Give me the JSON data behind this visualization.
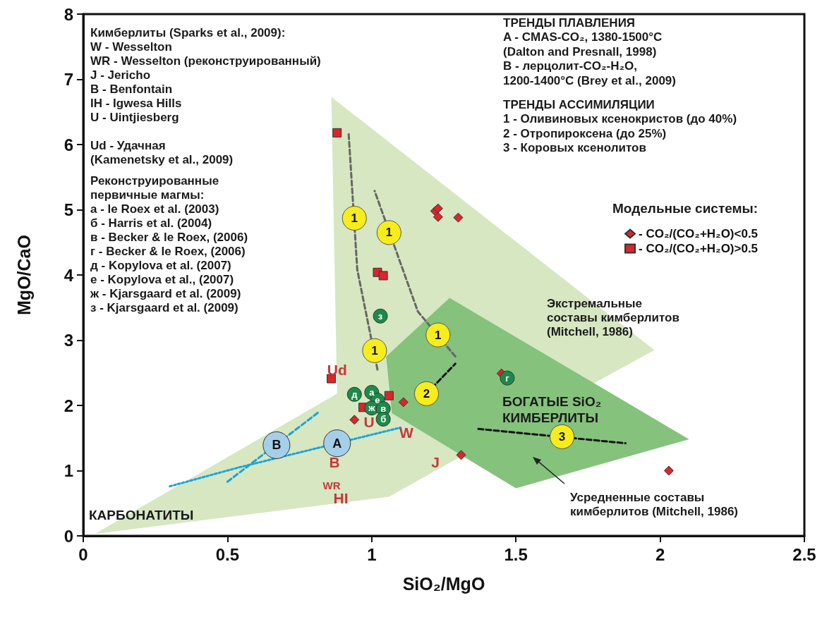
{
  "chart_data": {
    "type": "scatter",
    "xlabel": "SiO₂/MgO",
    "ylabel": "MgO/CaO",
    "xlim": [
      0,
      2.5
    ],
    "xticks": [
      0,
      0.5,
      1,
      1.5,
      2,
      2.5
    ],
    "ylim": [
      0,
      8
    ],
    "yticks": [
      0,
      1,
      2,
      3,
      4,
      5,
      6,
      7,
      8
    ],
    "grid": false,
    "legend": "right",
    "legend_title": "Модельные системы:",
    "series": [
      {
        "type": "area",
        "color": "#d6e7c2",
        "x": [
          0.04,
          0.88,
          0.86,
          1.98,
          1.31,
          1.06
        ],
        "values": [
          0.03,
          2.18,
          6.73,
          2.85,
          1.22,
          0.6
        ]
      },
      {
        "type": "area",
        "color": "#85c27c",
        "x": [
          1.05,
          1.27,
          2.1,
          1.5,
          1.07
        ],
        "values": [
          2.75,
          3.65,
          1.48,
          0.73,
          1.88
        ]
      },
      {
        "type": "line",
        "color": "#666666",
        "line_style": "dashed",
        "x": [
          1.02,
          0.95,
          0.92
        ],
        "values": [
          2.55,
          4.08,
          6.17
        ]
      },
      {
        "type": "line",
        "color": "#666666",
        "line_style": "dashed",
        "x": [
          1.29,
          1.16,
          1.01
        ],
        "values": [
          2.75,
          3.44,
          5.29
        ]
      },
      {
        "type": "line",
        "color": "#111111",
        "line_style": "dashed",
        "x": [
          1.19,
          1.29
        ],
        "values": [
          2.18,
          2.64
        ]
      },
      {
        "type": "line",
        "color": "#111111",
        "line_style": "dashed",
        "x": [
          1.37,
          1.88
        ],
        "values": [
          1.64,
          1.42
        ]
      },
      {
        "type": "line",
        "color": "#1ba3d9",
        "line_style": "dotted",
        "x": [
          0.3,
          0.54,
          1.1
        ],
        "values": [
          0.76,
          1.05,
          1.66
        ]
      },
      {
        "type": "line",
        "color": "#1ba3d9",
        "line_style": "dashed",
        "x": [
          0.5,
          0.82
        ],
        "values": [
          0.83,
          1.91
        ]
      },
      {
        "name": "- CO₂/(CO₂+H₂O)<0.5",
        "marker": "diamond",
        "color": "#d9262b",
        "x": [
          1.22,
          1.23,
          1.23,
          1.3,
          0.94,
          1.11,
          1.31,
          1.45,
          2.03
        ],
        "values": [
          4.98,
          5.02,
          4.89,
          4.88,
          1.78,
          2.05,
          1.24,
          2.49,
          1.0
        ]
      },
      {
        "name": "- CO₂/(CO₂+H₂O)>0.5",
        "marker": "square",
        "color": "#d9262b",
        "x": [
          0.88,
          1.02,
          1.04,
          0.86,
          0.97,
          1.06
        ],
        "values": [
          6.18,
          4.04,
          3.99,
          2.41,
          1.97,
          2.15
        ]
      },
      {
        "marker": "circle",
        "color": "#1e8a4a",
        "x": [
          0.94,
          1.0,
          1.02,
          1.0,
          1.04,
          1.04,
          1.03,
          1.47
        ],
        "values": [
          2.17,
          2.2,
          2.08,
          1.96,
          1.95,
          1.79,
          3.37,
          2.42
        ],
        "value_labels": [
          "д",
          "а",
          "е",
          "ж",
          "в",
          "б",
          "з",
          "г"
        ]
      },
      {
        "marker": "circle",
        "color": "#a5cfe8",
        "x": [
          0.67,
          0.88
        ],
        "values": [
          1.39,
          1.42
        ],
        "value_labels": [
          "B",
          "A"
        ]
      }
    ],
    "annotations": [
      "Кимберлиты (Sparks et al., 2009):\nW - Wesselton\nWR - Wesselton (реконструированный)\nJ - Jericho\nB - Benfontain\nIH - Igwesa Hills\nU - Uintjiesberg",
      "Ud - Удачная\n(Kamenetsky et al., 2009)",
      "Реконструированные\nпервичные магмы:\nа - le Roex et al. (2003)\nб - Harris et al. (2004)\nв - Becker & le Roex, (2006)\nг - Becker & le Roex, (2006)\nд - Kopylova et al. (2007)\nе - Kopylova et al., (2007)\nж - Kjarsgaard et al. (2009)\nз - Kjarsgaard et al. (2009)",
      "ТРЕНДЫ ПЛАВЛЕНИЯ\nA - CMAS-CO₂, 1380-1500°C\n(Dalton and Presnall, 1998)\nB - лерцолит-CO₂-H₂O,\n1200-1400°C (Brey et al., 2009)",
      "ТРЕНДЫ АССИМИЛЯЦИИ\n1 - Оливиновых ксенокристов (до 40%)\n2 - Отропироксена (до 25%)\n3 - Коровых ксенолитов",
      "Экстремальные\nсоставы кимберлитов\n(Mitchell, 1986)",
      "БОГАТЫЕ SiO₂\nКИМБЕРЛИТЫ",
      "Усредненные составы\nкимберлитов (Mitchell, 1986)",
      "КАРБОНАТИТЫ",
      {
        "text": "Ud",
        "x": 0.88,
        "y": 2.55
      },
      "U",
      "W",
      "B",
      "J",
      "WR",
      "HI",
      {
        "text": "1",
        "x": 0.94,
        "y": 4.87
      },
      {
        "text": "1",
        "x": 1.06,
        "y": 4.65
      },
      {
        "text": "1",
        "x": 1.01,
        "y": 2.84
      },
      {
        "text": "1",
        "x": 1.23,
        "y": 3.08
      },
      {
        "text": "2",
        "x": 1.19,
        "y": 2.18
      },
      {
        "text": "3",
        "x": 1.66,
        "y": 1.52
      }
    ]
  }
}
